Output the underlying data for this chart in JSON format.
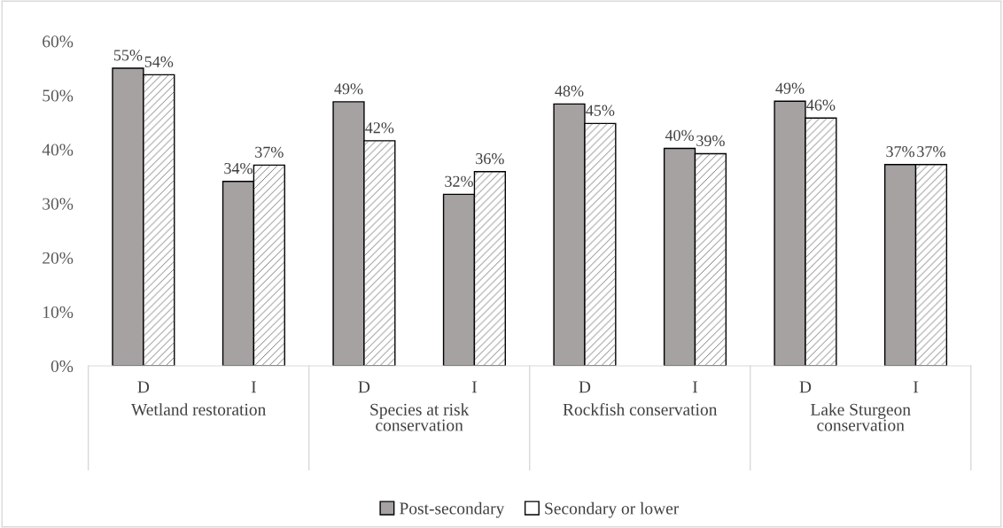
{
  "chart_data": {
    "type": "bar",
    "categories": [
      "D",
      "I",
      "D",
      "I",
      "D",
      "I",
      "D",
      "I"
    ],
    "annotations": [
      "Wetland restoration",
      "Species at risk\nconservation",
      "Rockfish conservation",
      "Lake Sturgeon\nconservation"
    ],
    "series": [
      {
        "name": "Post-secondary",
        "color": "#a6a2a2",
        "values": [
          55.0,
          34.1,
          48.8,
          31.7,
          48.4,
          40.2,
          48.9,
          37.2
        ],
        "value_labels": [
          "55%",
          "34%",
          "49%",
          "32%",
          "48%",
          "40%",
          "49%",
          "37%"
        ]
      },
      {
        "name": "Secondary or lower",
        "color": "#ffffff",
        "values": [
          53.8,
          37.1,
          41.6,
          35.9,
          44.8,
          39.2,
          45.8,
          37.2
        ],
        "value_labels": [
          "54%",
          "37%",
          "42%",
          "36%",
          "45%",
          "39%",
          "46%",
          "37%"
        ]
      }
    ],
    "ylim": [
      0,
      60
    ],
    "yticks": [
      {
        "value": 0,
        "label": "0%"
      },
      {
        "value": 10,
        "label": "10%"
      },
      {
        "value": 20,
        "label": "20%"
      },
      {
        "value": 30,
        "label": "30%"
      },
      {
        "value": 40,
        "label": "40%"
      },
      {
        "value": 50,
        "label": "50%"
      },
      {
        "value": 60,
        "label": "60%"
      }
    ],
    "legend": "bottom",
    "grid": false
  }
}
